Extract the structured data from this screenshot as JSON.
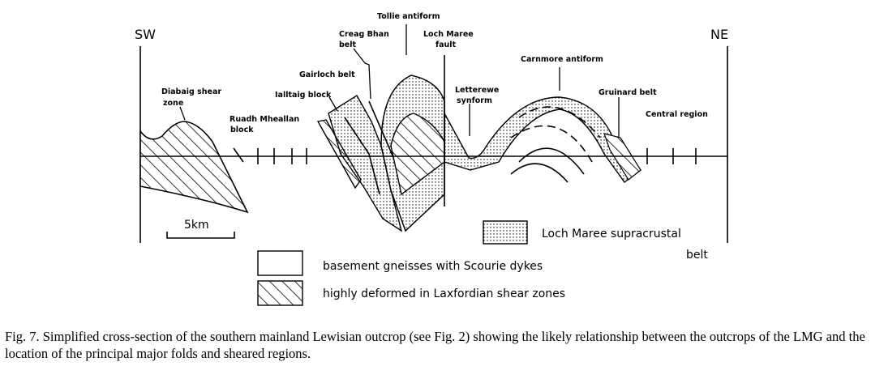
{
  "figure": {
    "directions": {
      "left": "SW",
      "right": "NE"
    },
    "labels": {
      "tollie": "Tollie antiform",
      "creag_1": "Creag Bhan",
      "creag_2": "belt",
      "fault_1": "Loch Maree",
      "fault_2": "fault",
      "gairloch": "Gairloch belt",
      "ialltaig": "Ialltaig block",
      "diabaig_1": "Diabaig shear",
      "diabaig_2": "zone",
      "ruadh_1": "Ruadh Mheallan",
      "ruadh_2": "block",
      "letterewe_1": "Letterewe",
      "letterewe_2": "synform",
      "carnmore": "Carnmore antiform",
      "gruinard": "Gruinard belt",
      "central": "Central region"
    },
    "scale_bar": "5km",
    "legend": [
      {
        "pattern": "dotted",
        "label": "Loch Maree supracrustal",
        "label_2": "belt"
      },
      {
        "pattern": "blank",
        "label": "basement gneisses with Scourie dykes"
      },
      {
        "pattern": "hatched",
        "label": "highly deformed in Laxfordian shear zones"
      }
    ]
  },
  "caption": "Fig. 7. Simplified cross-section of the southern mainland Lewisian outcrop (see Fig. 2) showing the likely relationship between the outcrops of the LMG and the location of the principal major folds and sheared regions."
}
